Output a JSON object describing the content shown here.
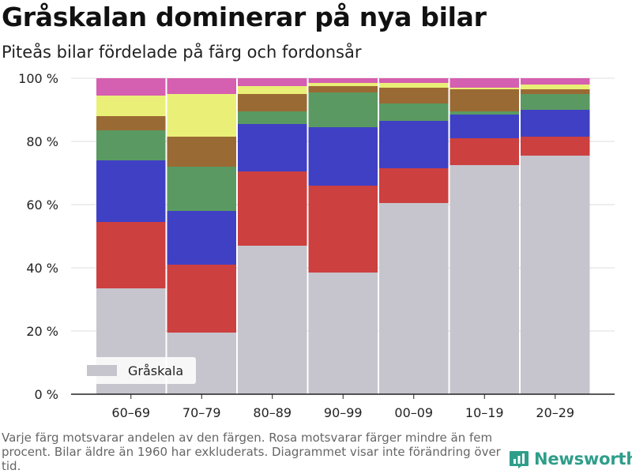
{
  "title": "Gråskalan dominerar på nya bilar",
  "subtitle": "Piteås bilar fördelade på färg och fordonsår",
  "footnote": "Varje färg motsvarar andelen av den färgen. Rosa motsvarar färger mindre än fem procent. Bilar äldre än 1960 har exkluderats. Diagrammet visar inte förändring över tid.",
  "brand": "Newsworthy",
  "colors": {
    "grayscale": "#c6c5cd",
    "red": "#cc4040",
    "blue": "#4040c4",
    "green": "#5a9a62",
    "brown": "#9a6a34",
    "yellow": "#eaf077",
    "pink": "#d55fb0",
    "brand": "#2e9e8a"
  },
  "chart_data": {
    "type": "bar",
    "stacked": true,
    "categories": [
      "60–69",
      "70–79",
      "80–89",
      "90–99",
      "00–09",
      "10–19",
      "20–29"
    ],
    "y_ticks": [
      "0 %",
      "20 %",
      "40 %",
      "60 %",
      "80 %",
      "100 %"
    ],
    "ylim": [
      0,
      100
    ],
    "grid": true,
    "legend": {
      "position": "bottom-left",
      "entries": [
        "Gråskala"
      ]
    },
    "series": [
      {
        "name": "Gråskala",
        "color_key": "grayscale",
        "values": [
          33.5,
          19.5,
          47,
          38.5,
          60.5,
          72.5,
          75.5
        ]
      },
      {
        "color_key": "red",
        "values": [
          21,
          21.5,
          23.5,
          27.5,
          11,
          8.5,
          6
        ]
      },
      {
        "color_key": "blue",
        "values": [
          19.5,
          17,
          15,
          18.5,
          15,
          7.5,
          8.5
        ]
      },
      {
        "color_key": "green",
        "values": [
          9.5,
          14,
          4,
          11,
          5.5,
          1,
          5
        ]
      },
      {
        "color_key": "brown",
        "values": [
          4.5,
          9.5,
          5.5,
          2,
          5,
          7,
          1.5
        ]
      },
      {
        "color_key": "yellow",
        "values": [
          6.5,
          13.5,
          2.5,
          1,
          1.5,
          0.5,
          1.5
        ]
      },
      {
        "color_key": "pink",
        "values": [
          5.5,
          5,
          2.5,
          1.5,
          1.5,
          3,
          2
        ]
      }
    ]
  }
}
